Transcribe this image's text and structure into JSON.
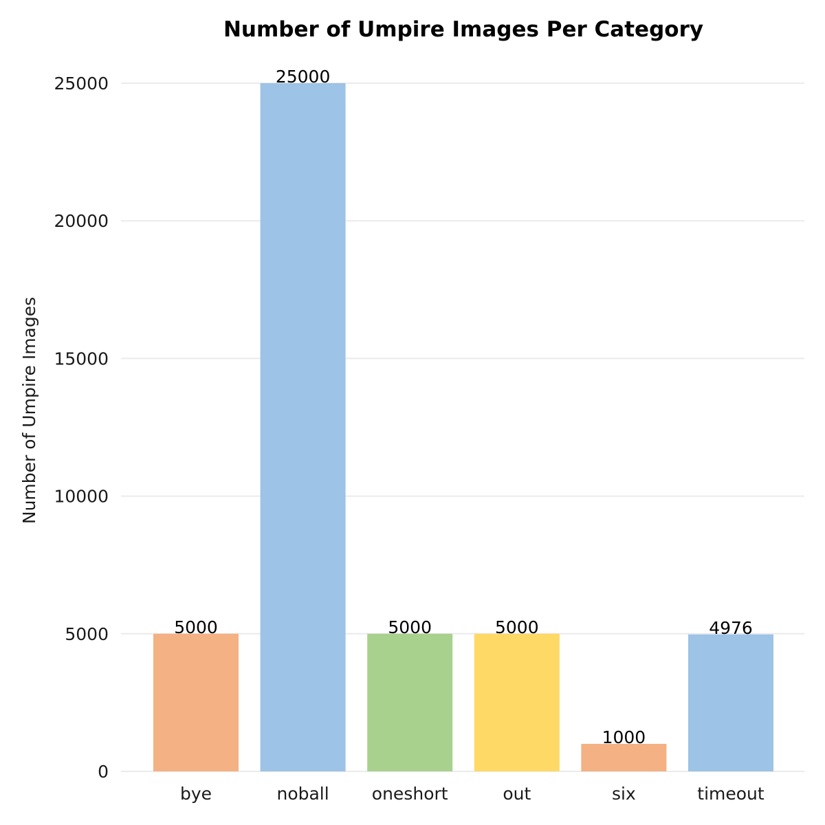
{
  "chart_data": {
    "type": "bar",
    "title": "Number of Umpire Images Per Category",
    "xlabel": "",
    "ylabel": "Number of Umpire Images",
    "categories": [
      "bye",
      "noball",
      "oneshort",
      "out",
      "six",
      "timeout"
    ],
    "values": [
      5000,
      25000,
      5000,
      5000,
      1000,
      4976
    ],
    "value_labels": [
      "5000",
      "25000",
      "5000",
      "5000",
      "1000",
      "4976"
    ],
    "ylim": [
      0,
      25000
    ],
    "yticks": [
      0,
      5000,
      10000,
      15000,
      20000,
      25000
    ],
    "ytick_labels": [
      "0",
      "5000",
      "10000",
      "15000",
      "20000",
      "25000"
    ],
    "grid": true,
    "legend": "none",
    "bar_colors": [
      "#f4b183",
      "#9dc3e6",
      "#a9d18e",
      "#ffd966",
      "#f4b183",
      "#9dc3e6"
    ],
    "grid_color": "#ebebeb"
  }
}
